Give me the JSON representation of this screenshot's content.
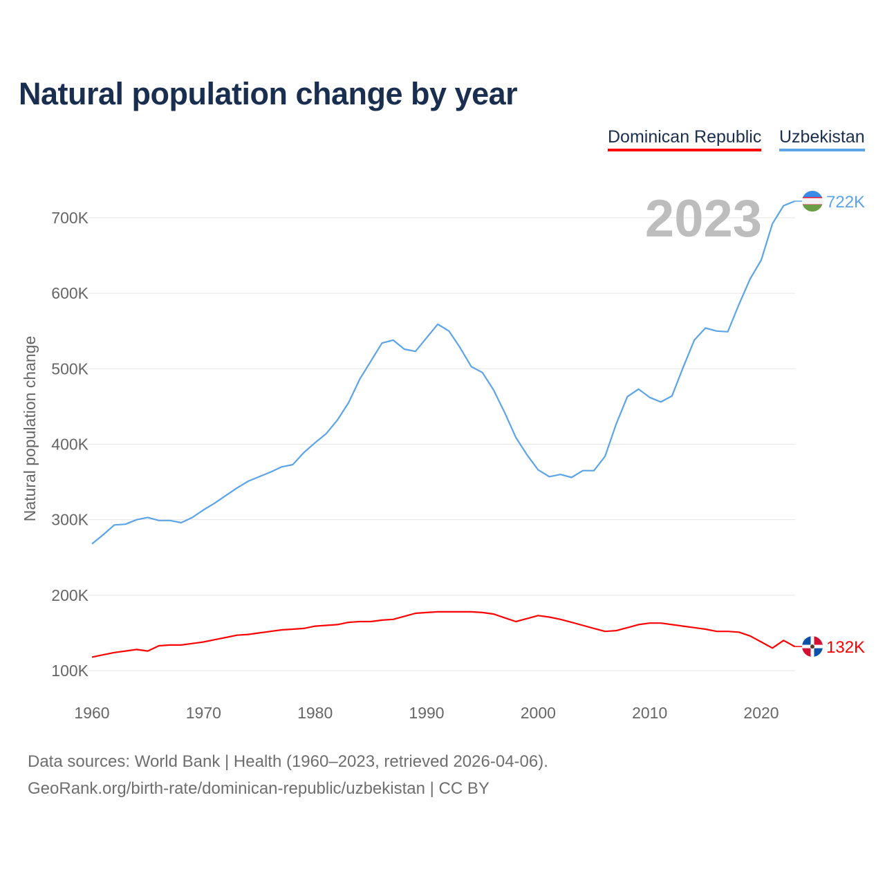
{
  "chart_data": {
    "type": "line",
    "title": "Natural population change by year",
    "xlabel": "",
    "ylabel": "Natural population change",
    "xlim": [
      1960,
      2023
    ],
    "ylim": [
      70000,
      750000
    ],
    "grid": true,
    "legend_placement": "top-right",
    "highlight_year": "2023",
    "x_ticks": [
      1960,
      1970,
      1980,
      1990,
      2000,
      2010,
      2020
    ],
    "y_ticks": [
      100000,
      200000,
      300000,
      400000,
      500000,
      600000,
      700000
    ],
    "y_tick_labels": [
      "100K",
      "200K",
      "300K",
      "400K",
      "500K",
      "600K",
      "700K"
    ],
    "x": [
      1960,
      1961,
      1962,
      1963,
      1964,
      1965,
      1966,
      1967,
      1968,
      1969,
      1970,
      1971,
      1972,
      1973,
      1974,
      1975,
      1976,
      1977,
      1978,
      1979,
      1980,
      1981,
      1982,
      1983,
      1984,
      1985,
      1986,
      1987,
      1988,
      1989,
      1990,
      1991,
      1992,
      1993,
      1994,
      1995,
      1996,
      1997,
      1998,
      1999,
      2000,
      2001,
      2002,
      2003,
      2004,
      2005,
      2006,
      2007,
      2008,
      2009,
      2010,
      2011,
      2012,
      2013,
      2014,
      2015,
      2016,
      2017,
      2018,
      2019,
      2020,
      2021,
      2022,
      2023
    ],
    "series": [
      {
        "name": "Dominican Republic",
        "color": "#ff0000",
        "end_label": "132K",
        "flag": "dominican-republic-flag",
        "values": [
          118,
          121,
          124,
          126,
          128,
          126,
          133,
          134,
          134,
          136,
          138,
          141,
          144,
          147,
          148,
          150,
          152,
          154,
          155,
          156,
          159,
          160,
          161,
          164,
          165,
          165,
          167,
          168,
          172,
          176,
          177,
          178,
          178,
          178,
          178,
          177,
          175,
          170,
          165,
          169,
          173,
          171,
          168,
          164,
          160,
          156,
          152,
          153,
          157,
          161,
          163,
          163,
          161,
          159,
          157,
          155,
          152,
          152,
          151,
          146,
          138,
          130,
          140,
          132
        ],
        "unit": "thousands"
      },
      {
        "name": "Uzbekistan",
        "color": "#5ba4ea",
        "end_label": "722K",
        "flag": "uzbekistan-flag",
        "values": [
          268,
          280,
          293,
          294,
          300,
          303,
          299,
          299,
          296,
          303,
          313,
          322,
          332,
          342,
          351,
          357,
          363,
          370,
          373,
          389,
          402,
          414,
          432,
          455,
          486,
          510,
          534,
          538,
          526,
          523,
          541,
          559,
          550,
          528,
          503,
          495,
          472,
          442,
          409,
          386,
          366,
          357,
          360,
          356,
          365,
          365,
          384,
          427,
          463,
          473,
          462,
          456,
          464,
          502,
          538,
          554,
          550,
          549,
          585,
          619,
          644,
          692,
          716,
          722
        ],
        "unit": "thousands"
      }
    ]
  },
  "footer": {
    "line1": "Data sources: World Bank | Health (1960–2023, retrieved 2026-04-06).",
    "line2": "GeoRank.org/birth-rate/dominican-republic/uzbekistan | CC BY"
  }
}
